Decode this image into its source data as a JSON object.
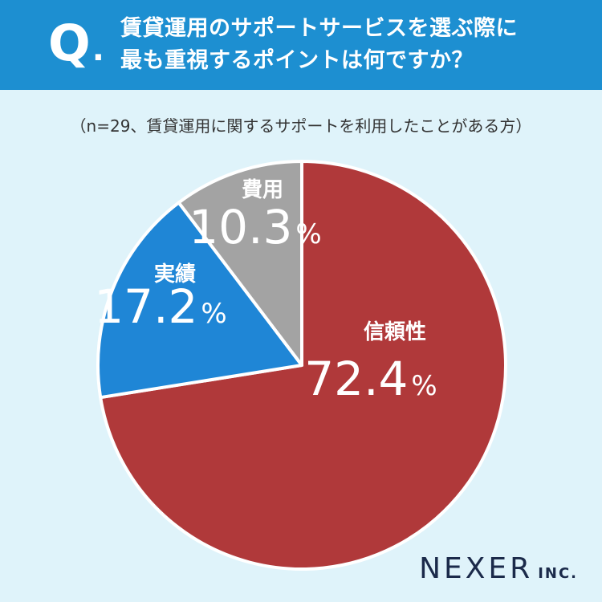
{
  "header": {
    "q_letter": "Q",
    "q_dot": ".",
    "question_line1": "賃貸運用のサポートサービスを選ぶ際に",
    "question_line2": "最も重視するポイントは何ですか？"
  },
  "note": "（n=29、賃貸運用に関するサポートを利用したことがある方）",
  "chart_data": {
    "type": "pie",
    "start": "12 o'clock",
    "direction": "clockwise",
    "slices": [
      {
        "label": "信頼性",
        "value": 72.4,
        "value_text": "72.4",
        "unit": "%",
        "color": "#b0393a"
      },
      {
        "label": "実績",
        "value": 17.2,
        "value_text": "17.2",
        "unit": "%",
        "color": "#1f86d6"
      },
      {
        "label": "費用",
        "value": 10.3,
        "value_text": "10.3",
        "unit": "%",
        "color": "#a3a3a3"
      }
    ],
    "border_color": "#ffffff"
  },
  "logo": {
    "main": "NEXER",
    "inc": "INC."
  }
}
